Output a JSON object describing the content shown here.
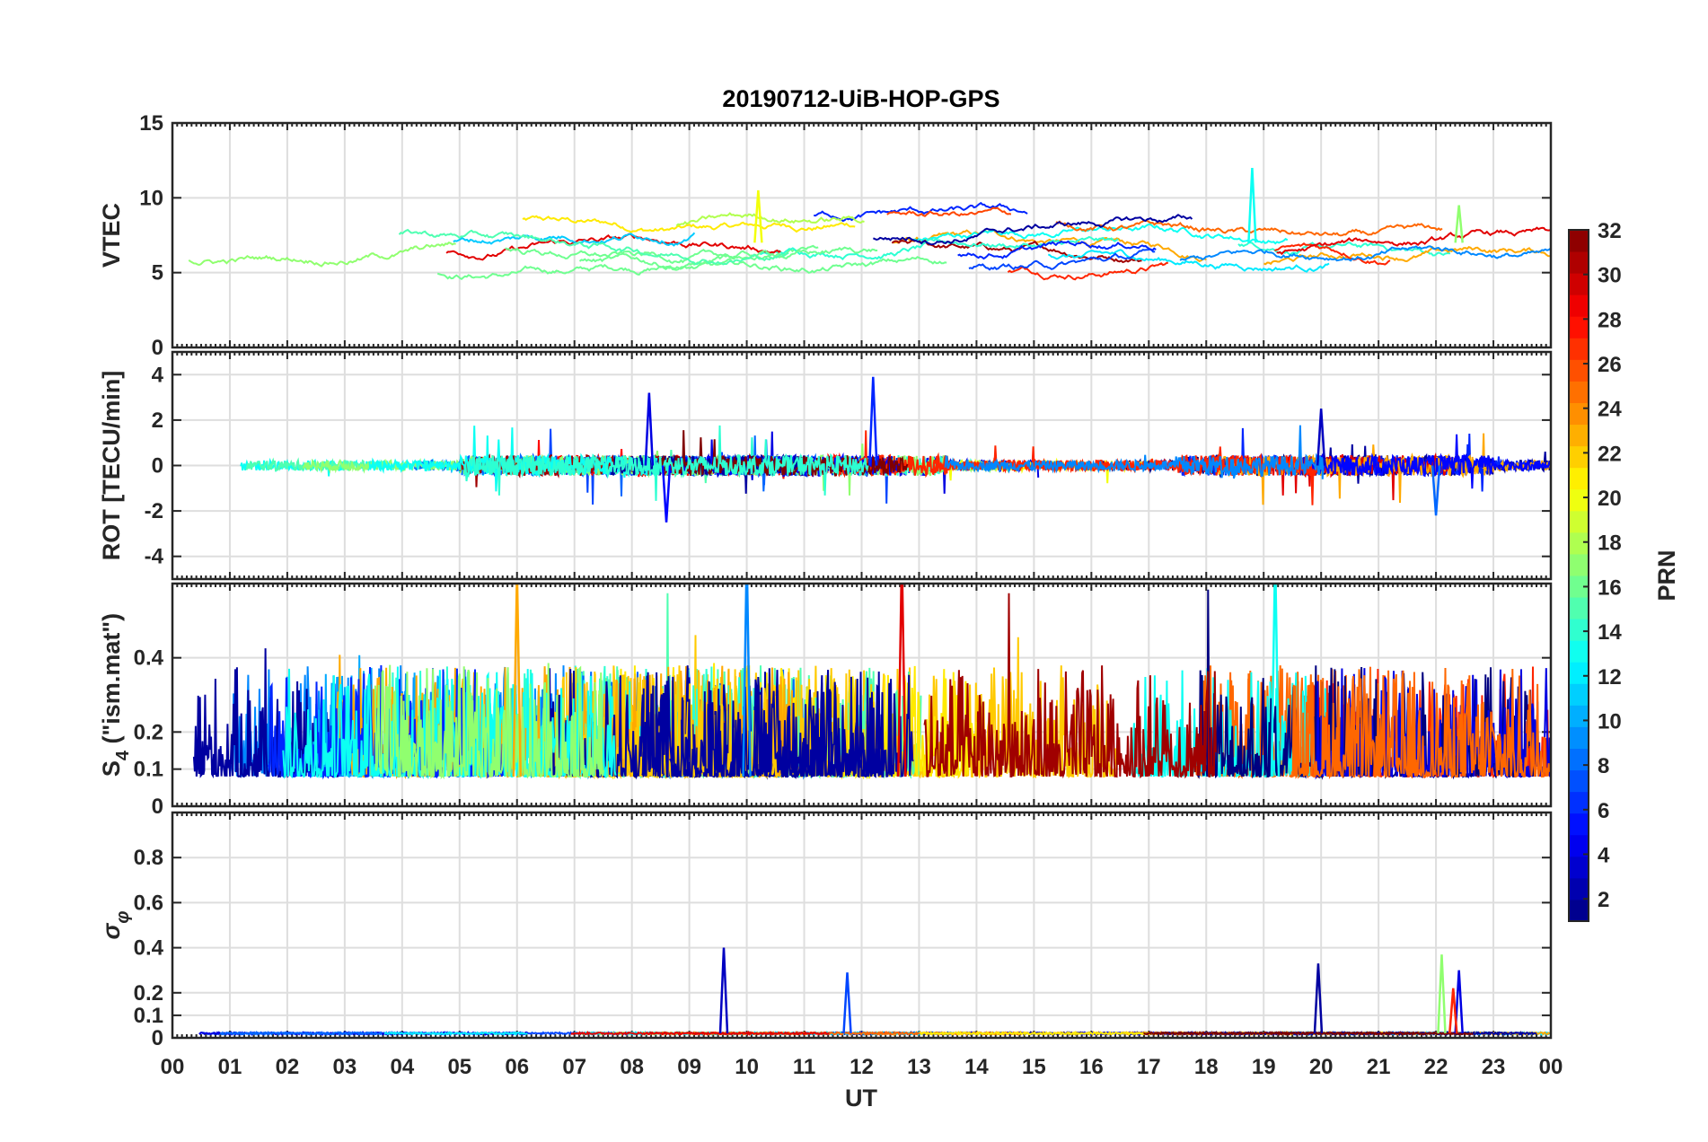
{
  "chart_data": {
    "title": "20190712-UiB-HOP-GPS",
    "type": "line",
    "x_axis": {
      "label": "UT",
      "range_hours": [
        0,
        24
      ],
      "tick_labels": [
        "00",
        "01",
        "02",
        "03",
        "04",
        "05",
        "06",
        "07",
        "08",
        "09",
        "10",
        "11",
        "12",
        "13",
        "14",
        "15",
        "16",
        "17",
        "18",
        "19",
        "20",
        "21",
        "22",
        "23",
        "00"
      ]
    },
    "colorbar": {
      "label": "PRN",
      "range": [
        1,
        32
      ],
      "tick_labels": [
        "2",
        "4",
        "6",
        "8",
        "10",
        "12",
        "14",
        "16",
        "18",
        "20",
        "22",
        "24",
        "26",
        "28",
        "30",
        "32"
      ],
      "colormap": "jet"
    },
    "panels": [
      {
        "id": "vtec",
        "ylabel": "VTEC",
        "ylim": [
          0,
          15
        ],
        "yticks": [
          0,
          5,
          10,
          15
        ],
        "ytick_labels": [
          "0",
          "5",
          "10",
          "15"
        ],
        "grid": true,
        "baseline": 7,
        "noise": 0.35,
        "events": [
          {
            "t": 18.8,
            "amp": 5.0,
            "prn": 13
          },
          {
            "t": 10.2,
            "amp": 3.5,
            "prn": 20
          },
          {
            "t": 22.4,
            "amp": 2.5,
            "prn": 17
          }
        ]
      },
      {
        "id": "rot",
        "ylabel": "ROT [TECU/min]",
        "ylim": [
          -5,
          5
        ],
        "yticks": [
          -4,
          -2,
          0,
          2,
          4
        ],
        "ytick_labels": [
          "-4",
          "-2",
          "0",
          "2",
          "4"
        ],
        "grid": true,
        "baseline": 0,
        "noise": 0.15,
        "events": [
          {
            "t": 12.2,
            "amp": 3.9,
            "prn": 6
          },
          {
            "t": 8.3,
            "amp": 3.2,
            "prn": 4
          },
          {
            "t": 20.0,
            "amp": 2.5,
            "prn": 3
          },
          {
            "t": 8.6,
            "amp": -2.5,
            "prn": 5
          },
          {
            "t": 22.0,
            "amp": -2.2,
            "prn": 8
          }
        ]
      },
      {
        "id": "s4",
        "ylabel": "S4 (\"ism.mat\")",
        "ylim": [
          0,
          0.6
        ],
        "yticks": [
          0,
          0.1,
          0.2,
          0.4
        ],
        "ytick_labels": [
          "0",
          "0.1",
          "0.2",
          "0.4"
        ],
        "grid": true,
        "baseline": 0.08,
        "noise": 0.08,
        "events": [
          {
            "t": 6.0,
            "amp": 0.55,
            "prn": 23
          },
          {
            "t": 12.7,
            "amp": 0.6,
            "prn": 29
          },
          {
            "t": 19.2,
            "amp": 0.6,
            "prn": 13
          },
          {
            "t": 10.0,
            "amp": 0.6,
            "prn": 9
          }
        ]
      },
      {
        "id": "sigma_phi",
        "ylabel": "σφ",
        "ylim": [
          0,
          1
        ],
        "yticks": [
          0,
          0.1,
          0.2,
          0.4,
          0.6,
          0.8
        ],
        "ytick_labels": [
          "0",
          "0.1",
          "0.2",
          "0.4",
          "0.6",
          "0.8"
        ],
        "grid": true,
        "baseline": 0.02,
        "noise": 0.008,
        "events": [
          {
            "t": 9.6,
            "amp": 0.38,
            "prn": 3
          },
          {
            "t": 11.75,
            "amp": 0.27,
            "prn": 7
          },
          {
            "t": 19.95,
            "amp": 0.31,
            "prn": 2
          },
          {
            "t": 22.1,
            "amp": 0.35,
            "prn": 17
          },
          {
            "t": 22.4,
            "amp": 0.28,
            "prn": 4
          },
          {
            "t": 22.3,
            "amp": 0.2,
            "prn": 27
          }
        ]
      }
    ]
  }
}
